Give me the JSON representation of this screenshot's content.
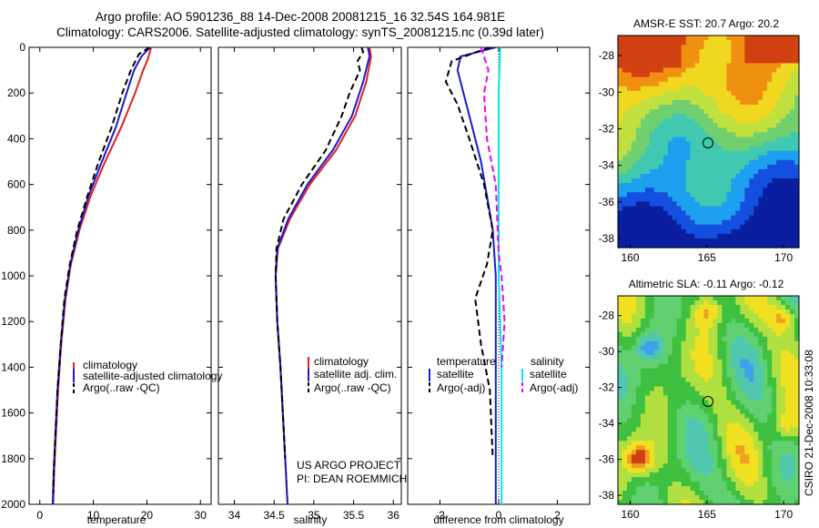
{
  "header": {
    "title_line1": "Argo profile: AO 5901236_88 14-Dec-2008 20081215_16 32.54S 164.981E",
    "title_line2": "Climatology: CARS2006. Satellite-adjusted climatology: synTS_20081215.nc (0.39d later)"
  },
  "credit": {
    "project": "US ARGO PROJECT",
    "pi": "PI: DEAN ROEMMICH",
    "stamp": "CSIRO  21-Dec-2008 10:33:08"
  },
  "colors": {
    "climatology": "#e02020",
    "satellite": "#1a1ad0",
    "argo": "#000000",
    "satellite_sal": "#00e5ee",
    "argo_adj_sal": "#ee00ee"
  },
  "chart_data": [
    {
      "type": "line",
      "xlabel": "temperature",
      "x_ticks": [
        "0",
        "10",
        "20",
        "30"
      ],
      "y_ticks": [
        "0",
        "200",
        "400",
        "600",
        "800",
        "1000",
        "1200",
        "1400",
        "1600",
        "1800",
        "2000"
      ],
      "xlim": [
        -2,
        32
      ],
      "ylim": [
        2000,
        0
      ],
      "legend": [
        "climatology",
        "satellite-adjusted climatology",
        "Argo(..raw -QC)"
      ],
      "series": [
        {
          "name": "climatology",
          "color": "#e02020",
          "dash": "solid",
          "points": [
            [
              20.8,
              0
            ],
            [
              20.2,
              50
            ],
            [
              19.3,
              100
            ],
            [
              17.8,
              200
            ],
            [
              15.2,
              350
            ],
            [
              12.2,
              500
            ],
            [
              9.5,
              650
            ],
            [
              7.4,
              800
            ],
            [
              5.8,
              950
            ],
            [
              4.8,
              1100
            ],
            [
              4.0,
              1300
            ],
            [
              3.4,
              1500
            ],
            [
              3.0,
              1700
            ],
            [
              2.7,
              1850
            ],
            [
              2.5,
              2000
            ]
          ]
        },
        {
          "name": "satellite-adjusted climatology",
          "color": "#1a1ad0",
          "dash": "solid",
          "points": [
            [
              20.6,
              0
            ],
            [
              19.0,
              40
            ],
            [
              17.6,
              100
            ],
            [
              16.2,
              200
            ],
            [
              14.2,
              350
            ],
            [
              11.6,
              500
            ],
            [
              9.1,
              650
            ],
            [
              7.2,
              800
            ],
            [
              5.7,
              950
            ],
            [
              4.7,
              1100
            ],
            [
              3.9,
              1300
            ],
            [
              3.3,
              1500
            ],
            [
              2.9,
              1700
            ],
            [
              2.6,
              1850
            ],
            [
              2.4,
              2000
            ]
          ]
        },
        {
          "name": "Argo(..raw -QC)",
          "color": "#000000",
          "dash": "dash",
          "points": [
            [
              20.5,
              0
            ],
            [
              18.5,
              30
            ],
            [
              17.0,
              100
            ],
            [
              15.4,
              200
            ],
            [
              13.4,
              350
            ],
            [
              11.0,
              500
            ],
            [
              8.9,
              650
            ],
            [
              7.0,
              800
            ],
            [
              5.6,
              950
            ],
            [
              4.6,
              1100
            ],
            [
              3.9,
              1300
            ],
            [
              3.3,
              1500
            ],
            [
              2.9,
              1700
            ],
            [
              2.6,
              1850
            ],
            [
              2.5,
              1950
            ]
          ]
        }
      ]
    },
    {
      "type": "line",
      "xlabel": "salinity",
      "x_ticks": [
        "34",
        "34.5",
        "35",
        "35.5",
        "36"
      ],
      "y_ticks": [],
      "xlim": [
        33.8,
        36.1
      ],
      "ylim": [
        2000,
        0
      ],
      "legend": [
        "climatology",
        "satellite adj. clim.",
        "Argo(..raw -QC)"
      ],
      "series": [
        {
          "name": "climatology",
          "color": "#e02020",
          "dash": "solid",
          "points": [
            [
              35.7,
              0
            ],
            [
              35.72,
              40
            ],
            [
              35.66,
              150
            ],
            [
              35.52,
              300
            ],
            [
              35.28,
              450
            ],
            [
              34.95,
              600
            ],
            [
              34.7,
              750
            ],
            [
              34.55,
              880
            ],
            [
              34.52,
              1000
            ],
            [
              34.54,
              1200
            ],
            [
              34.58,
              1400
            ],
            [
              34.61,
              1600
            ],
            [
              34.64,
              1800
            ],
            [
              34.67,
              2000
            ]
          ]
        },
        {
          "name": "satellite adj. clim.",
          "color": "#1a1ad0",
          "dash": "solid",
          "points": [
            [
              35.68,
              0
            ],
            [
              35.7,
              40
            ],
            [
              35.62,
              150
            ],
            [
              35.48,
              300
            ],
            [
              35.24,
              450
            ],
            [
              34.92,
              600
            ],
            [
              34.68,
              750
            ],
            [
              34.54,
              880
            ],
            [
              34.52,
              1000
            ],
            [
              34.54,
              1200
            ],
            [
              34.58,
              1400
            ],
            [
              34.61,
              1600
            ],
            [
              34.64,
              1800
            ],
            [
              34.67,
              2000
            ]
          ]
        },
        {
          "name": "Argo(..raw -QC)",
          "color": "#000000",
          "dash": "dash",
          "points": [
            [
              35.6,
              0
            ],
            [
              35.62,
              20
            ],
            [
              35.55,
              60
            ],
            [
              35.58,
              100
            ],
            [
              35.45,
              200
            ],
            [
              35.35,
              300
            ],
            [
              35.15,
              450
            ],
            [
              34.85,
              600
            ],
            [
              34.62,
              750
            ],
            [
              34.53,
              880
            ],
            [
              34.52,
              1000
            ],
            [
              34.54,
              1200
            ],
            [
              34.58,
              1400
            ],
            [
              34.61,
              1600
            ],
            [
              34.64,
              1800
            ]
          ]
        }
      ]
    },
    {
      "type": "line",
      "xlabel": "difference from climatology",
      "x_ticks": [
        "-2",
        "0",
        "2"
      ],
      "y_ticks": [],
      "xlim": [
        -3.1,
        3.1
      ],
      "ylim": [
        2000,
        0
      ],
      "legend_left_title": "temperature",
      "legend_left": [
        "satellite",
        "Argo(-adj)"
      ],
      "legend_right_title": "salinity",
      "legend_right": [
        "satellite",
        "Argo(-adj)"
      ],
      "series": [
        {
          "name": "satellite",
          "color": "#1a1ad0",
          "dash": "solid",
          "points": [
            [
              -0.1,
              0
            ],
            [
              -1.3,
              40
            ],
            [
              -1.4,
              100
            ],
            [
              -1.2,
              200
            ],
            [
              -0.9,
              350
            ],
            [
              -0.6,
              500
            ],
            [
              -0.4,
              650
            ],
            [
              -0.2,
              800
            ],
            [
              -0.1,
              1000
            ],
            [
              -0.1,
              1400
            ],
            [
              -0.1,
              2000
            ]
          ]
        },
        {
          "name": "Argo(-adj)",
          "color": "#000000",
          "dash": "dash",
          "points": [
            [
              -0.3,
              0
            ],
            [
              -1.6,
              60
            ],
            [
              -1.8,
              150
            ],
            [
              -1.4,
              250
            ],
            [
              -1.0,
              400
            ],
            [
              -0.5,
              600
            ],
            [
              -0.2,
              800
            ],
            [
              -0.4,
              950
            ],
            [
              -0.8,
              1100
            ],
            [
              -0.6,
              1300
            ],
            [
              -0.3,
              1500
            ],
            [
              -0.2,
              1800
            ]
          ]
        },
        {
          "name": "satellite",
          "color": "#00e5ee",
          "dash": "solid",
          "points": [
            [
              0.05,
              0
            ],
            [
              0.0,
              200
            ],
            [
              0.0,
              600
            ],
            [
              0.0,
              1000
            ],
            [
              0.1,
              1400
            ],
            [
              0.1,
              2000
            ]
          ]
        },
        {
          "name": "Argo(-adj)",
          "color": "#ee00ee",
          "dash": "dash",
          "points": [
            [
              -0.6,
              0
            ],
            [
              -0.35,
              100
            ],
            [
              -0.5,
              200
            ],
            [
              -0.4,
              400
            ],
            [
              -0.1,
              600
            ],
            [
              0.0,
              900
            ],
            [
              0.1,
              1000
            ],
            [
              0.2,
              1200
            ],
            [
              0.1,
              1400
            ]
          ]
        }
      ]
    }
  ],
  "maps": [
    {
      "title": "AMSR-E SST: 20.7 Argo: 20.2",
      "x_ticks": [
        "160",
        "165",
        "170"
      ],
      "y_ticks": [
        "-28",
        "-30",
        "-32",
        "-34",
        "-36",
        "-38"
      ],
      "marker": {
        "lon": 164.98,
        "lat": -32.54
      },
      "palette": [
        "#0a1fa0",
        "#1450e0",
        "#1ea0f0",
        "#40c8b0",
        "#70d070",
        "#c0e040",
        "#f0d820",
        "#f09010",
        "#d04010"
      ]
    },
    {
      "title": "Altimetric SLA: -0.11 Argo: -0.12",
      "x_ticks": [
        "160",
        "165",
        "170"
      ],
      "y_ticks": [
        "-28",
        "-30",
        "-32",
        "-34",
        "-36",
        "-38"
      ],
      "marker": {
        "lon": 164.98,
        "lat": -32.54
      },
      "palette": [
        "#2060d0",
        "#40a0f0",
        "#50c8b0",
        "#60d070",
        "#40c040",
        "#b0e040",
        "#f0e020",
        "#f0a020",
        "#d04010"
      ]
    }
  ]
}
